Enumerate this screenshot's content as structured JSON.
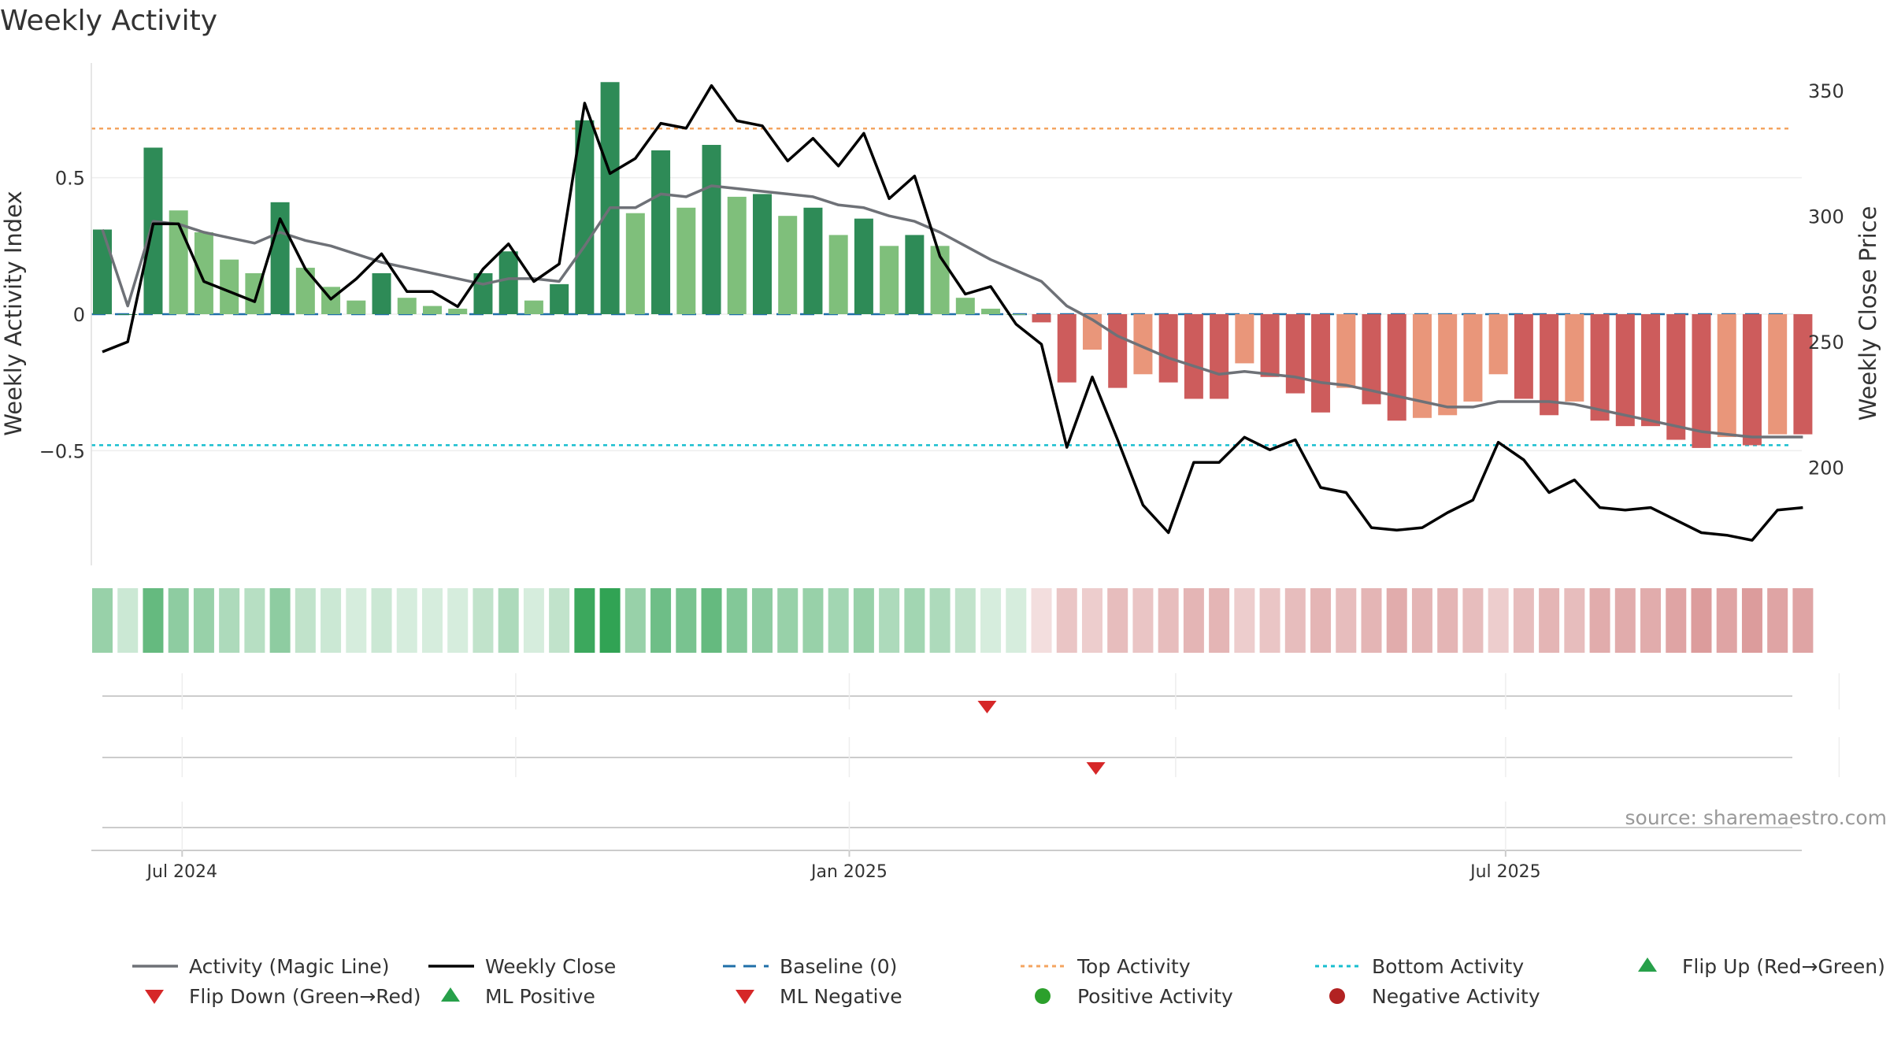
{
  "chart_data": {
    "type": "bar",
    "title": "Weekly Activity",
    "source": "source: sharemaestro.com",
    "y_left": {
      "label": "Weekly Activity Index",
      "ticks": [
        0.5,
        0,
        -0.5
      ],
      "tick_labels": [
        "0.5",
        "0",
        "−0.5"
      ],
      "range": [
        -0.92,
        0.92
      ]
    },
    "y_right": {
      "label": "Weekly Close Price",
      "ticks": [
        350,
        300,
        250,
        200
      ],
      "tick_labels": [
        "350",
        "300",
        "250",
        "200"
      ],
      "range": [
        161,
        361
      ]
    },
    "x_axis": {
      "start": "2024-06-09",
      "step_days": 7,
      "tick_dates": [
        "2024-07-01",
        "2025-01-01",
        "2025-07-01"
      ],
      "tick_labels": [
        "Jul 2024",
        "Jan 2025",
        "Jul 2025"
      ],
      "minor_grid_dates": [
        "2024-07-01",
        "2024-10-01",
        "2025-01-01",
        "2025-04-01",
        "2025-07-01",
        "2025-10-01"
      ]
    },
    "reference_lines": {
      "baseline": 0,
      "top_activity": 0.68,
      "bottom_activity": -0.48
    },
    "series": [
      {
        "name": "Weekly Activity",
        "kind": "bar",
        "values": [
          0.31,
          0,
          0.61,
          0.38,
          0.3,
          0.2,
          0.15,
          0.41,
          0.17,
          0.1,
          0.05,
          0.15,
          0.06,
          0.03,
          0.02,
          0.15,
          0.23,
          0.05,
          0.11,
          0.71,
          0.85,
          0.37,
          0.6,
          0.39,
          0.62,
          0.43,
          0.44,
          0.36,
          0.39,
          0.29,
          0.35,
          0.25,
          0.29,
          0.25,
          0.06,
          0.02,
          0,
          -0.03,
          -0.25,
          -0.13,
          -0.27,
          -0.22,
          -0.25,
          -0.31,
          -0.31,
          -0.18,
          -0.23,
          -0.29,
          -0.36,
          -0.27,
          -0.33,
          -0.39,
          -0.38,
          -0.37,
          -0.32,
          -0.22,
          -0.31,
          -0.37,
          -0.32,
          -0.39,
          -0.41,
          -0.41,
          -0.46,
          -0.49,
          -0.45,
          -0.48,
          -0.44,
          -0.44
        ],
        "shade": [
          "d",
          "d",
          "d",
          "l",
          "l",
          "l",
          "l",
          "d",
          "l",
          "l",
          "l",
          "d",
          "l",
          "l",
          "l",
          "d",
          "d",
          "l",
          "d",
          "d",
          "d",
          "l",
          "d",
          "l",
          "d",
          "l",
          "d",
          "l",
          "d",
          "l",
          "d",
          "l",
          "d",
          "l",
          "l",
          "l",
          "l",
          "d",
          "d",
          "l",
          "d",
          "l",
          "d",
          "d",
          "d",
          "l",
          "d",
          "d",
          "d",
          "l",
          "d",
          "d",
          "l",
          "l",
          "l",
          "l",
          "d",
          "d",
          "l",
          "d",
          "d",
          "d",
          "d",
          "d",
          "l",
          "d",
          "l",
          "d"
        ]
      },
      {
        "name": "Activity (Magic Line)",
        "kind": "line",
        "values": [
          0.31,
          0.03,
          0.34,
          0.33,
          0.3,
          0.28,
          0.26,
          0.3,
          0.27,
          0.25,
          0.22,
          0.19,
          0.17,
          0.15,
          0.13,
          0.11,
          0.13,
          0.13,
          0.12,
          0.25,
          0.39,
          0.39,
          0.44,
          0.43,
          0.47,
          0.46,
          0.45,
          0.44,
          0.43,
          0.4,
          0.39,
          0.36,
          0.34,
          0.3,
          0.25,
          0.2,
          0.16,
          0.12,
          0.03,
          -0.02,
          -0.08,
          -0.12,
          -0.16,
          -0.19,
          -0.22,
          -0.21,
          -0.22,
          -0.23,
          -0.25,
          -0.26,
          -0.28,
          -0.3,
          -0.32,
          -0.34,
          -0.34,
          -0.32,
          -0.32,
          -0.32,
          -0.33,
          -0.35,
          -0.37,
          -0.39,
          -0.41,
          -0.43,
          -0.44,
          -0.45,
          -0.45,
          -0.45
        ]
      },
      {
        "name": "Weekly Close",
        "kind": "line",
        "axis": "right",
        "values": [
          246,
          250,
          297,
          297,
          274,
          270,
          266,
          299,
          279,
          267,
          275,
          285,
          270,
          270,
          264,
          279,
          289,
          274,
          281,
          345,
          317,
          323,
          337,
          335,
          352,
          338,
          336,
          322,
          331,
          320,
          333,
          307,
          316,
          284,
          269,
          272,
          257,
          249,
          208,
          236,
          211,
          185,
          174,
          202,
          202,
          212,
          207,
          211,
          192,
          190,
          176,
          175,
          176,
          182,
          187,
          210,
          203,
          190,
          195,
          184,
          183,
          184,
          179,
          174,
          173,
          171,
          183,
          184
        ]
      }
    ],
    "strip": {
      "alpha": [
        0.5,
        0.25,
        0.75,
        0.55,
        0.5,
        0.4,
        0.35,
        0.55,
        0.3,
        0.25,
        0.2,
        0.25,
        0.2,
        0.2,
        0.2,
        0.3,
        0.4,
        0.2,
        0.3,
        0.95,
        1.0,
        0.5,
        0.7,
        0.65,
        0.75,
        0.6,
        0.55,
        0.5,
        0.5,
        0.45,
        0.5,
        0.4,
        0.45,
        0.4,
        0.3,
        0.2,
        0.2,
        0.2,
        0.35,
        0.3,
        0.4,
        0.35,
        0.4,
        0.45,
        0.45,
        0.3,
        0.35,
        0.4,
        0.45,
        0.4,
        0.45,
        0.5,
        0.45,
        0.45,
        0.4,
        0.3,
        0.4,
        0.45,
        0.4,
        0.5,
        0.5,
        0.5,
        0.55,
        0.6,
        0.55,
        0.6,
        0.55,
        0.55
      ]
    },
    "flip_rows": [
      {
        "markers": [
          {
            "date": "2025-02-08",
            "type": "down"
          }
        ]
      },
      {
        "markers": [
          {
            "date": "2025-03-10",
            "type": "down"
          }
        ]
      },
      {
        "markers": []
      }
    ],
    "legend": [
      {
        "key": "magic",
        "label": "Activity (Magic Line)"
      },
      {
        "key": "close",
        "label": "Weekly Close"
      },
      {
        "key": "baseline",
        "label": "Baseline (0)"
      },
      {
        "key": "top",
        "label": "Top Activity"
      },
      {
        "key": "bottom",
        "label": "Bottom Activity"
      },
      {
        "key": "flip-up",
        "label": "Flip Up (Red→Green)"
      },
      {
        "key": "flip-down",
        "label": "Flip Down (Green→Red)"
      },
      {
        "key": "ml-pos",
        "label": "ML Positive"
      },
      {
        "key": "ml-neg",
        "label": "ML Negative"
      },
      {
        "key": "pos-act",
        "label": "Positive Activity"
      },
      {
        "key": "neg-act",
        "label": "Negative Activity"
      }
    ],
    "colors": {
      "pos_dark": "#2e8b57",
      "pos_light": "#7fbf7b",
      "neg_dark": "#cd5c5c",
      "neg_light": "#e9967a",
      "strip_pos": "#31a354",
      "strip_neg": "#c45a5a",
      "magic": "#6e7177",
      "close": "#000000",
      "baseline": "#1f6fa8",
      "top": "#f4a460",
      "bottom": "#17becf",
      "flip_up": "#27a04a",
      "flip_down": "#d62728",
      "pos_dot": "#2ca02c",
      "neg_dot": "#b22222"
    }
  }
}
